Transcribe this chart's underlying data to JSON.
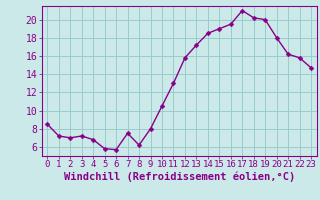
{
  "x": [
    0,
    1,
    2,
    3,
    4,
    5,
    6,
    7,
    8,
    9,
    10,
    11,
    12,
    13,
    14,
    15,
    16,
    17,
    18,
    19,
    20,
    21,
    22,
    23
  ],
  "y": [
    8.5,
    7.2,
    7.0,
    7.2,
    6.8,
    5.8,
    5.7,
    7.5,
    6.2,
    8.0,
    10.5,
    13.0,
    15.8,
    17.2,
    18.5,
    19.0,
    19.5,
    21.0,
    20.2,
    20.0,
    18.0,
    16.2,
    15.8,
    14.7
  ],
  "bg_color": "#cce9e9",
  "line_color": "#880088",
  "marker_color": "#880088",
  "grid_color": "#99cccc",
  "xlabel": "Windchill (Refroidissement éolien,°C)",
  "xlim": [
    -0.5,
    23.5
  ],
  "ylim": [
    5,
    21.5
  ],
  "yticks": [
    6,
    8,
    10,
    12,
    14,
    16,
    18,
    20
  ],
  "xtick_labels": [
    "0",
    "1",
    "2",
    "3",
    "4",
    "5",
    "6",
    "7",
    "8",
    "9",
    "10",
    "11",
    "12",
    "13",
    "14",
    "15",
    "16",
    "17",
    "18",
    "19",
    "20",
    "21",
    "22",
    "23"
  ],
  "xlabel_fontsize": 7.5,
  "tick_fontsize": 7,
  "line_width": 1.0,
  "marker_size": 2.5
}
